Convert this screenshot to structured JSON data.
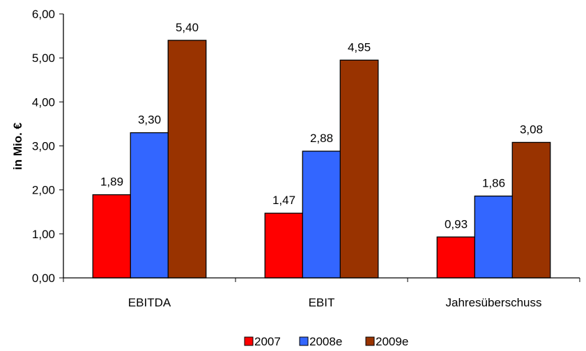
{
  "chart_data": {
    "type": "bar",
    "categories": [
      "EBITDA",
      "EBIT",
      "Jahresüberschuss"
    ],
    "series": [
      {
        "name": "2007",
        "values": [
          1.89,
          1.47,
          0.93
        ],
        "labels": [
          "1,89",
          "1,47",
          "0,93"
        ],
        "color": "#ff0000"
      },
      {
        "name": "2008e",
        "values": [
          3.3,
          2.88,
          1.86
        ],
        "labels": [
          "3,30",
          "2,88",
          "1,86"
        ],
        "color": "#3366ff"
      },
      {
        "name": "2009e",
        "values": [
          5.4,
          4.95,
          3.08
        ],
        "labels": [
          "5,40",
          "4,95",
          "3,08"
        ],
        "color": "#993300"
      }
    ],
    "ylabel": "in Mio. €",
    "ylim": [
      0,
      6
    ],
    "yticks": [
      0,
      1,
      2,
      3,
      4,
      5,
      6
    ],
    "ytick_labels": [
      "0,00",
      "1,00",
      "2,00",
      "3,00",
      "4,00",
      "5,00",
      "6,00"
    ],
    "grid": false,
    "legend": "bottom"
  }
}
